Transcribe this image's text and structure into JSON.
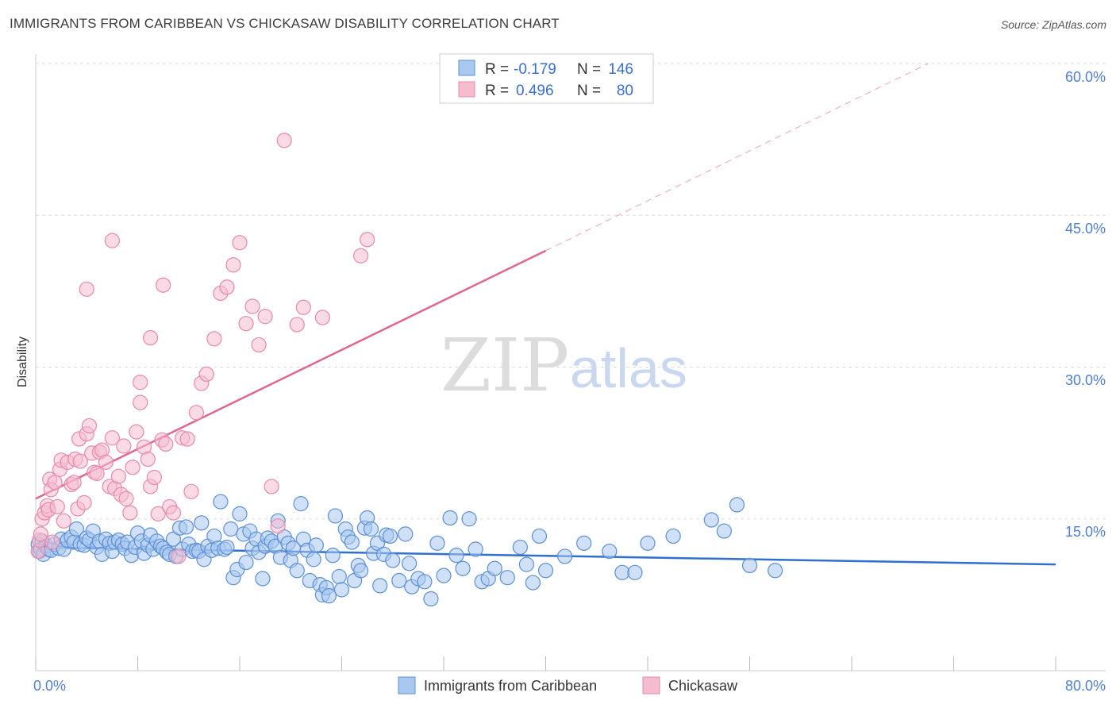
{
  "header": {
    "title": "IMMIGRANTS FROM CARIBBEAN VS CHICKASAW DISABILITY CORRELATION CHART",
    "source": "Source: ZipAtlas.com"
  },
  "watermark": {
    "zip": "ZIP",
    "atlas": "atlas"
  },
  "legend": {
    "rows": [
      {
        "r_label": "R =",
        "r_value": "-0.179",
        "n_label": "N =",
        "n_value": "146"
      },
      {
        "r_label": "R =",
        "r_value": "0.496",
        "n_label": "N =",
        "n_value": "80"
      }
    ]
  },
  "bottom_legend": {
    "items": [
      {
        "label": "Immigrants from Caribbean"
      },
      {
        "label": "Chickasaw"
      }
    ]
  },
  "colors": {
    "blue_fill": "#a9c8f0",
    "blue_stroke": "#5b8fd6",
    "blue_line": "#2f6fcf",
    "pink_fill": "#f5bcd0",
    "pink_stroke": "#e889a8",
    "pink_line": "#e0668f",
    "grid": "#dddddd",
    "tick_label": "#4f7fd0"
  },
  "chart_data": {
    "type": "scatter",
    "title": "IMMIGRANTS FROM CARIBBEAN VS CHICKASAW DISABILITY CORRELATION CHART",
    "xlabel": "",
    "ylabel": "Disability",
    "xlim": [
      0,
      80
    ],
    "ylim": [
      0,
      60
    ],
    "x_tick_labels": [
      "0.0%",
      "80.0%"
    ],
    "y_ticks": [
      15,
      30,
      45,
      60
    ],
    "y_tick_labels": [
      "15.0%",
      "30.0%",
      "45.0%",
      "60.0%"
    ],
    "grid": true,
    "legend_position": "top-center",
    "series": [
      {
        "name": "Immigrants from Caribbean",
        "color": "#a9c8f0",
        "r": -0.179,
        "n": 146,
        "trend": {
          "x": [
            0,
            80
          ],
          "y": [
            12.2,
            10.5
          ]
        },
        "points": [
          [
            0.2,
            12.5
          ],
          [
            0.3,
            11.8
          ],
          [
            0.4,
            12.0
          ],
          [
            0.5,
            12.8
          ],
          [
            0.6,
            11.5
          ],
          [
            0.8,
            12.3
          ],
          [
            1.0,
            12.0
          ],
          [
            1.2,
            11.9
          ],
          [
            1.5,
            12.5
          ],
          [
            1.8,
            12.1
          ],
          [
            2.0,
            13.0
          ],
          [
            2.2,
            12.0
          ],
          [
            2.5,
            12.9
          ],
          [
            2.8,
            13.2
          ],
          [
            3.0,
            12.7
          ],
          [
            3.2,
            14.0
          ],
          [
            3.5,
            12.5
          ],
          [
            3.8,
            12.4
          ],
          [
            4.0,
            13.1
          ],
          [
            4.2,
            12.9
          ],
          [
            4.5,
            13.8
          ],
          [
            4.8,
            12.2
          ],
          [
            5.0,
            12.8
          ],
          [
            5.2,
            11.5
          ],
          [
            5.5,
            13.0
          ],
          [
            5.8,
            12.6
          ],
          [
            6.0,
            11.8
          ],
          [
            6.2,
            12.7
          ],
          [
            6.5,
            12.9
          ],
          [
            6.8,
            12.5
          ],
          [
            7.0,
            12.1
          ],
          [
            7.2,
            12.7
          ],
          [
            7.5,
            11.4
          ],
          [
            7.8,
            12.2
          ],
          [
            8.0,
            13.6
          ],
          [
            8.3,
            12.8
          ],
          [
            8.5,
            11.6
          ],
          [
            8.8,
            12.4
          ],
          [
            9.0,
            13.4
          ],
          [
            9.2,
            12.0
          ],
          [
            9.5,
            12.8
          ],
          [
            9.8,
            12.3
          ],
          [
            10.0,
            12.1
          ],
          [
            10.3,
            11.7
          ],
          [
            10.5,
            11.5
          ],
          [
            10.8,
            13.0
          ],
          [
            11.0,
            11.3
          ],
          [
            11.3,
            14.1
          ],
          [
            11.5,
            12.0
          ],
          [
            11.8,
            14.2
          ],
          [
            12.0,
            12.5
          ],
          [
            12.3,
            11.8
          ],
          [
            12.6,
            11.9
          ],
          [
            12.8,
            11.8
          ],
          [
            13.0,
            14.6
          ],
          [
            13.2,
            11.0
          ],
          [
            13.5,
            12.3
          ],
          [
            13.8,
            11.9
          ],
          [
            14.0,
            13.3
          ],
          [
            14.3,
            12.1
          ],
          [
            14.5,
            16.7
          ],
          [
            14.8,
            12.0
          ],
          [
            15.0,
            12.2
          ],
          [
            15.3,
            14.0
          ],
          [
            15.5,
            9.2
          ],
          [
            15.8,
            10.0
          ],
          [
            16.0,
            15.5
          ],
          [
            16.3,
            13.5
          ],
          [
            16.5,
            10.7
          ],
          [
            16.8,
            13.8
          ],
          [
            17.0,
            12.1
          ],
          [
            17.3,
            13.0
          ],
          [
            17.5,
            11.7
          ],
          [
            17.8,
            9.1
          ],
          [
            18.0,
            12.3
          ],
          [
            18.2,
            13.1
          ],
          [
            18.5,
            12.8
          ],
          [
            18.8,
            12.3
          ],
          [
            19.0,
            14.8
          ],
          [
            19.2,
            11.2
          ],
          [
            19.5,
            13.2
          ],
          [
            19.8,
            12.6
          ],
          [
            20.0,
            10.9
          ],
          [
            20.2,
            12.1
          ],
          [
            20.5,
            9.9
          ],
          [
            20.8,
            16.5
          ],
          [
            21.0,
            13.0
          ],
          [
            21.3,
            11.9
          ],
          [
            21.5,
            8.9
          ],
          [
            21.8,
            11.0
          ],
          [
            22.0,
            12.4
          ],
          [
            22.3,
            8.5
          ],
          [
            22.5,
            7.5
          ],
          [
            22.8,
            8.2
          ],
          [
            23.0,
            7.4
          ],
          [
            23.3,
            11.4
          ],
          [
            23.5,
            15.3
          ],
          [
            23.8,
            9.3
          ],
          [
            24.0,
            8.0
          ],
          [
            24.3,
            14.0
          ],
          [
            24.5,
            13.2
          ],
          [
            24.8,
            12.7
          ],
          [
            25.0,
            8.9
          ],
          [
            25.3,
            10.4
          ],
          [
            25.5,
            9.9
          ],
          [
            25.8,
            14.1
          ],
          [
            26.0,
            15.1
          ],
          [
            26.3,
            14.0
          ],
          [
            26.5,
            11.6
          ],
          [
            26.8,
            12.6
          ],
          [
            27.0,
            8.4
          ],
          [
            27.3,
            11.5
          ],
          [
            27.5,
            13.4
          ],
          [
            27.8,
            13.3
          ],
          [
            28.0,
            10.9
          ],
          [
            28.5,
            8.9
          ],
          [
            29.0,
            13.5
          ],
          [
            29.3,
            10.6
          ],
          [
            29.5,
            8.3
          ],
          [
            30.0,
            9.1
          ],
          [
            30.5,
            8.8
          ],
          [
            31.0,
            7.1
          ],
          [
            31.5,
            12.6
          ],
          [
            32.0,
            9.4
          ],
          [
            32.5,
            15.1
          ],
          [
            33.0,
            11.4
          ],
          [
            33.5,
            10.1
          ],
          [
            34.0,
            15.0
          ],
          [
            34.5,
            12.0
          ],
          [
            35.0,
            8.8
          ],
          [
            35.5,
            9.1
          ],
          [
            36.0,
            10.1
          ],
          [
            37.0,
            9.2
          ],
          [
            38.0,
            12.2
          ],
          [
            38.5,
            10.5
          ],
          [
            39.0,
            8.7
          ],
          [
            39.5,
            13.3
          ],
          [
            40.0,
            9.9
          ],
          [
            41.5,
            11.3
          ],
          [
            43.0,
            12.6
          ],
          [
            45.0,
            11.8
          ],
          [
            46.0,
            9.7
          ],
          [
            47.0,
            9.7
          ],
          [
            48.0,
            12.6
          ],
          [
            50.0,
            13.3
          ],
          [
            53.0,
            14.9
          ],
          [
            54.0,
            13.8
          ],
          [
            55.0,
            16.4
          ],
          [
            56.0,
            10.4
          ],
          [
            58.0,
            9.9
          ]
        ]
      },
      {
        "name": "Chickasaw",
        "color": "#f5bcd0",
        "r": 0.496,
        "n": 80,
        "trend": {
          "x": [
            0,
            40
          ],
          "y": [
            17.0,
            41.5
          ]
        },
        "trend_dashed": {
          "x": [
            40,
            70
          ],
          "y": [
            41.5,
            60
          ]
        },
        "points": [
          [
            0.2,
            11.8
          ],
          [
            0.3,
            12.9
          ],
          [
            0.4,
            13.5
          ],
          [
            0.5,
            15.0
          ],
          [
            0.7,
            15.6
          ],
          [
            0.9,
            16.3
          ],
          [
            1.0,
            15.9
          ],
          [
            1.1,
            18.9
          ],
          [
            1.2,
            17.9
          ],
          [
            1.3,
            12.7
          ],
          [
            1.5,
            18.6
          ],
          [
            1.7,
            16.2
          ],
          [
            1.9,
            19.9
          ],
          [
            2.0,
            20.8
          ],
          [
            2.2,
            14.8
          ],
          [
            2.5,
            20.6
          ],
          [
            2.8,
            18.4
          ],
          [
            3.0,
            18.6
          ],
          [
            3.1,
            20.9
          ],
          [
            3.3,
            16.0
          ],
          [
            3.4,
            22.9
          ],
          [
            3.5,
            20.7
          ],
          [
            3.8,
            16.6
          ],
          [
            4.0,
            23.4
          ],
          [
            4.2,
            24.2
          ],
          [
            4.4,
            21.5
          ],
          [
            4.6,
            19.6
          ],
          [
            4.8,
            19.5
          ],
          [
            5.0,
            21.6
          ],
          [
            5.2,
            21.8
          ],
          [
            5.5,
            20.6
          ],
          [
            5.8,
            18.2
          ],
          [
            6.0,
            23.0
          ],
          [
            6.2,
            18.0
          ],
          [
            6.5,
            19.2
          ],
          [
            6.7,
            17.4
          ],
          [
            6.9,
            22.2
          ],
          [
            7.1,
            17.0
          ],
          [
            7.4,
            15.6
          ],
          [
            7.6,
            20.1
          ],
          [
            7.9,
            23.6
          ],
          [
            8.2,
            26.5
          ],
          [
            8.5,
            22.1
          ],
          [
            8.8,
            20.9
          ],
          [
            9.0,
            18.2
          ],
          [
            9.3,
            19.1
          ],
          [
            9.6,
            15.5
          ],
          [
            9.9,
            22.8
          ],
          [
            10.2,
            22.4
          ],
          [
            10.5,
            16.2
          ],
          [
            10.8,
            15.6
          ],
          [
            11.2,
            11.3
          ],
          [
            11.5,
            23.0
          ],
          [
            11.9,
            22.9
          ],
          [
            12.2,
            17.7
          ],
          [
            12.6,
            25.5
          ],
          [
            13.0,
            28.4
          ],
          [
            13.4,
            29.3
          ],
          [
            14.0,
            32.8
          ],
          [
            14.5,
            37.3
          ],
          [
            15.0,
            37.9
          ],
          [
            15.5,
            40.1
          ],
          [
            16.0,
            42.3
          ],
          [
            16.5,
            34.3
          ],
          [
            17.0,
            36.0
          ],
          [
            17.5,
            32.2
          ],
          [
            18.0,
            35.0
          ],
          [
            18.5,
            18.2
          ],
          [
            19.0,
            14.3
          ],
          [
            19.5,
            52.4
          ],
          [
            6.0,
            42.5
          ],
          [
            4.0,
            37.7
          ],
          [
            9.0,
            32.9
          ],
          [
            8.2,
            28.5
          ],
          [
            10.0,
            38.1
          ],
          [
            20.5,
            34.2
          ],
          [
            21.0,
            35.9
          ],
          [
            22.5,
            34.9
          ],
          [
            25.5,
            41.0
          ],
          [
            26.0,
            42.6
          ]
        ]
      }
    ]
  }
}
